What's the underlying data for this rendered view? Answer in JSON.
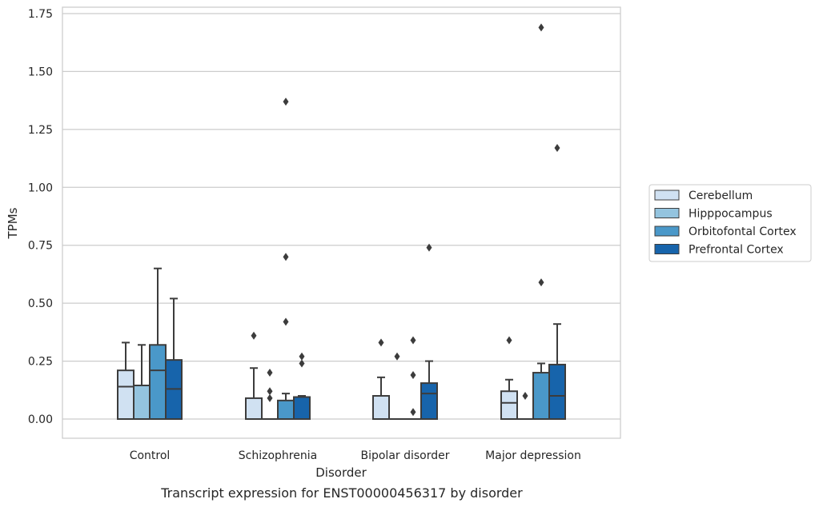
{
  "chart_data": {
    "type": "box",
    "title": "",
    "caption": "Transcript expression for ENST00000456317 by disorder",
    "xlabel": "Disorder",
    "ylabel": "TPMs",
    "ylim": [
      -0.08,
      1.77
    ],
    "yticks": [
      0.0,
      0.25,
      0.5,
      0.75,
      1.0,
      1.25,
      1.5,
      1.75
    ],
    "ytick_labels": [
      "0.00",
      "0.25",
      "0.50",
      "0.75",
      "1.00",
      "1.25",
      "1.50",
      "1.75"
    ],
    "grid": true,
    "legend_position": "right",
    "categories": [
      "Control",
      "Schizophrenia",
      "Bipolar disorder",
      "Major depression"
    ],
    "series": [
      {
        "name": "Cerebellum",
        "color": "#d0e1f2",
        "boxes": [
          {
            "whislo": 0.0,
            "q1": 0.0,
            "med": 0.14,
            "q3": 0.21,
            "whishi": 0.33,
            "fliers": []
          },
          {
            "whislo": 0.0,
            "q1": 0.0,
            "med": 0.0,
            "q3": 0.09,
            "whishi": 0.22,
            "fliers": [
              0.36
            ]
          },
          {
            "whislo": 0.0,
            "q1": 0.0,
            "med": 0.0,
            "q3": 0.1,
            "whishi": 0.18,
            "fliers": [
              0.33
            ]
          },
          {
            "whislo": 0.0,
            "q1": 0.0,
            "med": 0.07,
            "q3": 0.12,
            "whishi": 0.17,
            "fliers": [
              0.34
            ]
          }
        ]
      },
      {
        "name": "Hipppocampus",
        "color": "#94c4df",
        "boxes": [
          {
            "whislo": 0.0,
            "q1": 0.0,
            "med": 0.0,
            "q3": 0.145,
            "whishi": 0.32,
            "fliers": []
          },
          {
            "whislo": 0.0,
            "q1": 0.0,
            "med": 0.0,
            "q3": 0.0,
            "whishi": 0.0,
            "fliers": [
              0.2,
              0.12,
              0.09
            ]
          },
          {
            "whislo": 0.0,
            "q1": 0.0,
            "med": 0.0,
            "q3": 0.0,
            "whishi": 0.0,
            "fliers": [
              0.27
            ]
          },
          {
            "whislo": 0.0,
            "q1": 0.0,
            "med": 0.0,
            "q3": 0.0,
            "whishi": 0.0,
            "fliers": [
              0.1
            ]
          }
        ]
      },
      {
        "name": "Orbitofontal Cortex",
        "color": "#4a98c9",
        "boxes": [
          {
            "whislo": 0.0,
            "q1": 0.0,
            "med": 0.21,
            "q3": 0.32,
            "whishi": 0.65,
            "fliers": []
          },
          {
            "whislo": 0.0,
            "q1": 0.0,
            "med": 0.0,
            "q3": 0.08,
            "whishi": 0.11,
            "fliers": [
              1.37,
              0.7,
              0.42
            ]
          },
          {
            "whislo": 0.0,
            "q1": 0.0,
            "med": 0.0,
            "q3": 0.0,
            "whishi": 0.0,
            "fliers": [
              0.34,
              0.19,
              0.03
            ]
          },
          {
            "whislo": 0.0,
            "q1": 0.0,
            "med": 0.0,
            "q3": 0.2,
            "whishi": 0.24,
            "fliers": [
              1.69,
              0.59
            ]
          }
        ]
      },
      {
        "name": "Prefrontal Cortex",
        "color": "#1764ab",
        "boxes": [
          {
            "whislo": 0.0,
            "q1": 0.0,
            "med": 0.13,
            "q3": 0.255,
            "whishi": 0.52,
            "fliers": []
          },
          {
            "whislo": 0.0,
            "q1": 0.0,
            "med": 0.0,
            "q3": 0.095,
            "whishi": 0.1,
            "fliers": [
              0.27,
              0.24
            ]
          },
          {
            "whislo": 0.0,
            "q1": 0.0,
            "med": 0.11,
            "q3": 0.155,
            "whishi": 0.25,
            "fliers": [
              0.74
            ]
          },
          {
            "whislo": 0.0,
            "q1": 0.0,
            "med": 0.1,
            "q3": 0.235,
            "whishi": 0.41,
            "fliers": [
              1.17
            ]
          }
        ]
      }
    ]
  }
}
